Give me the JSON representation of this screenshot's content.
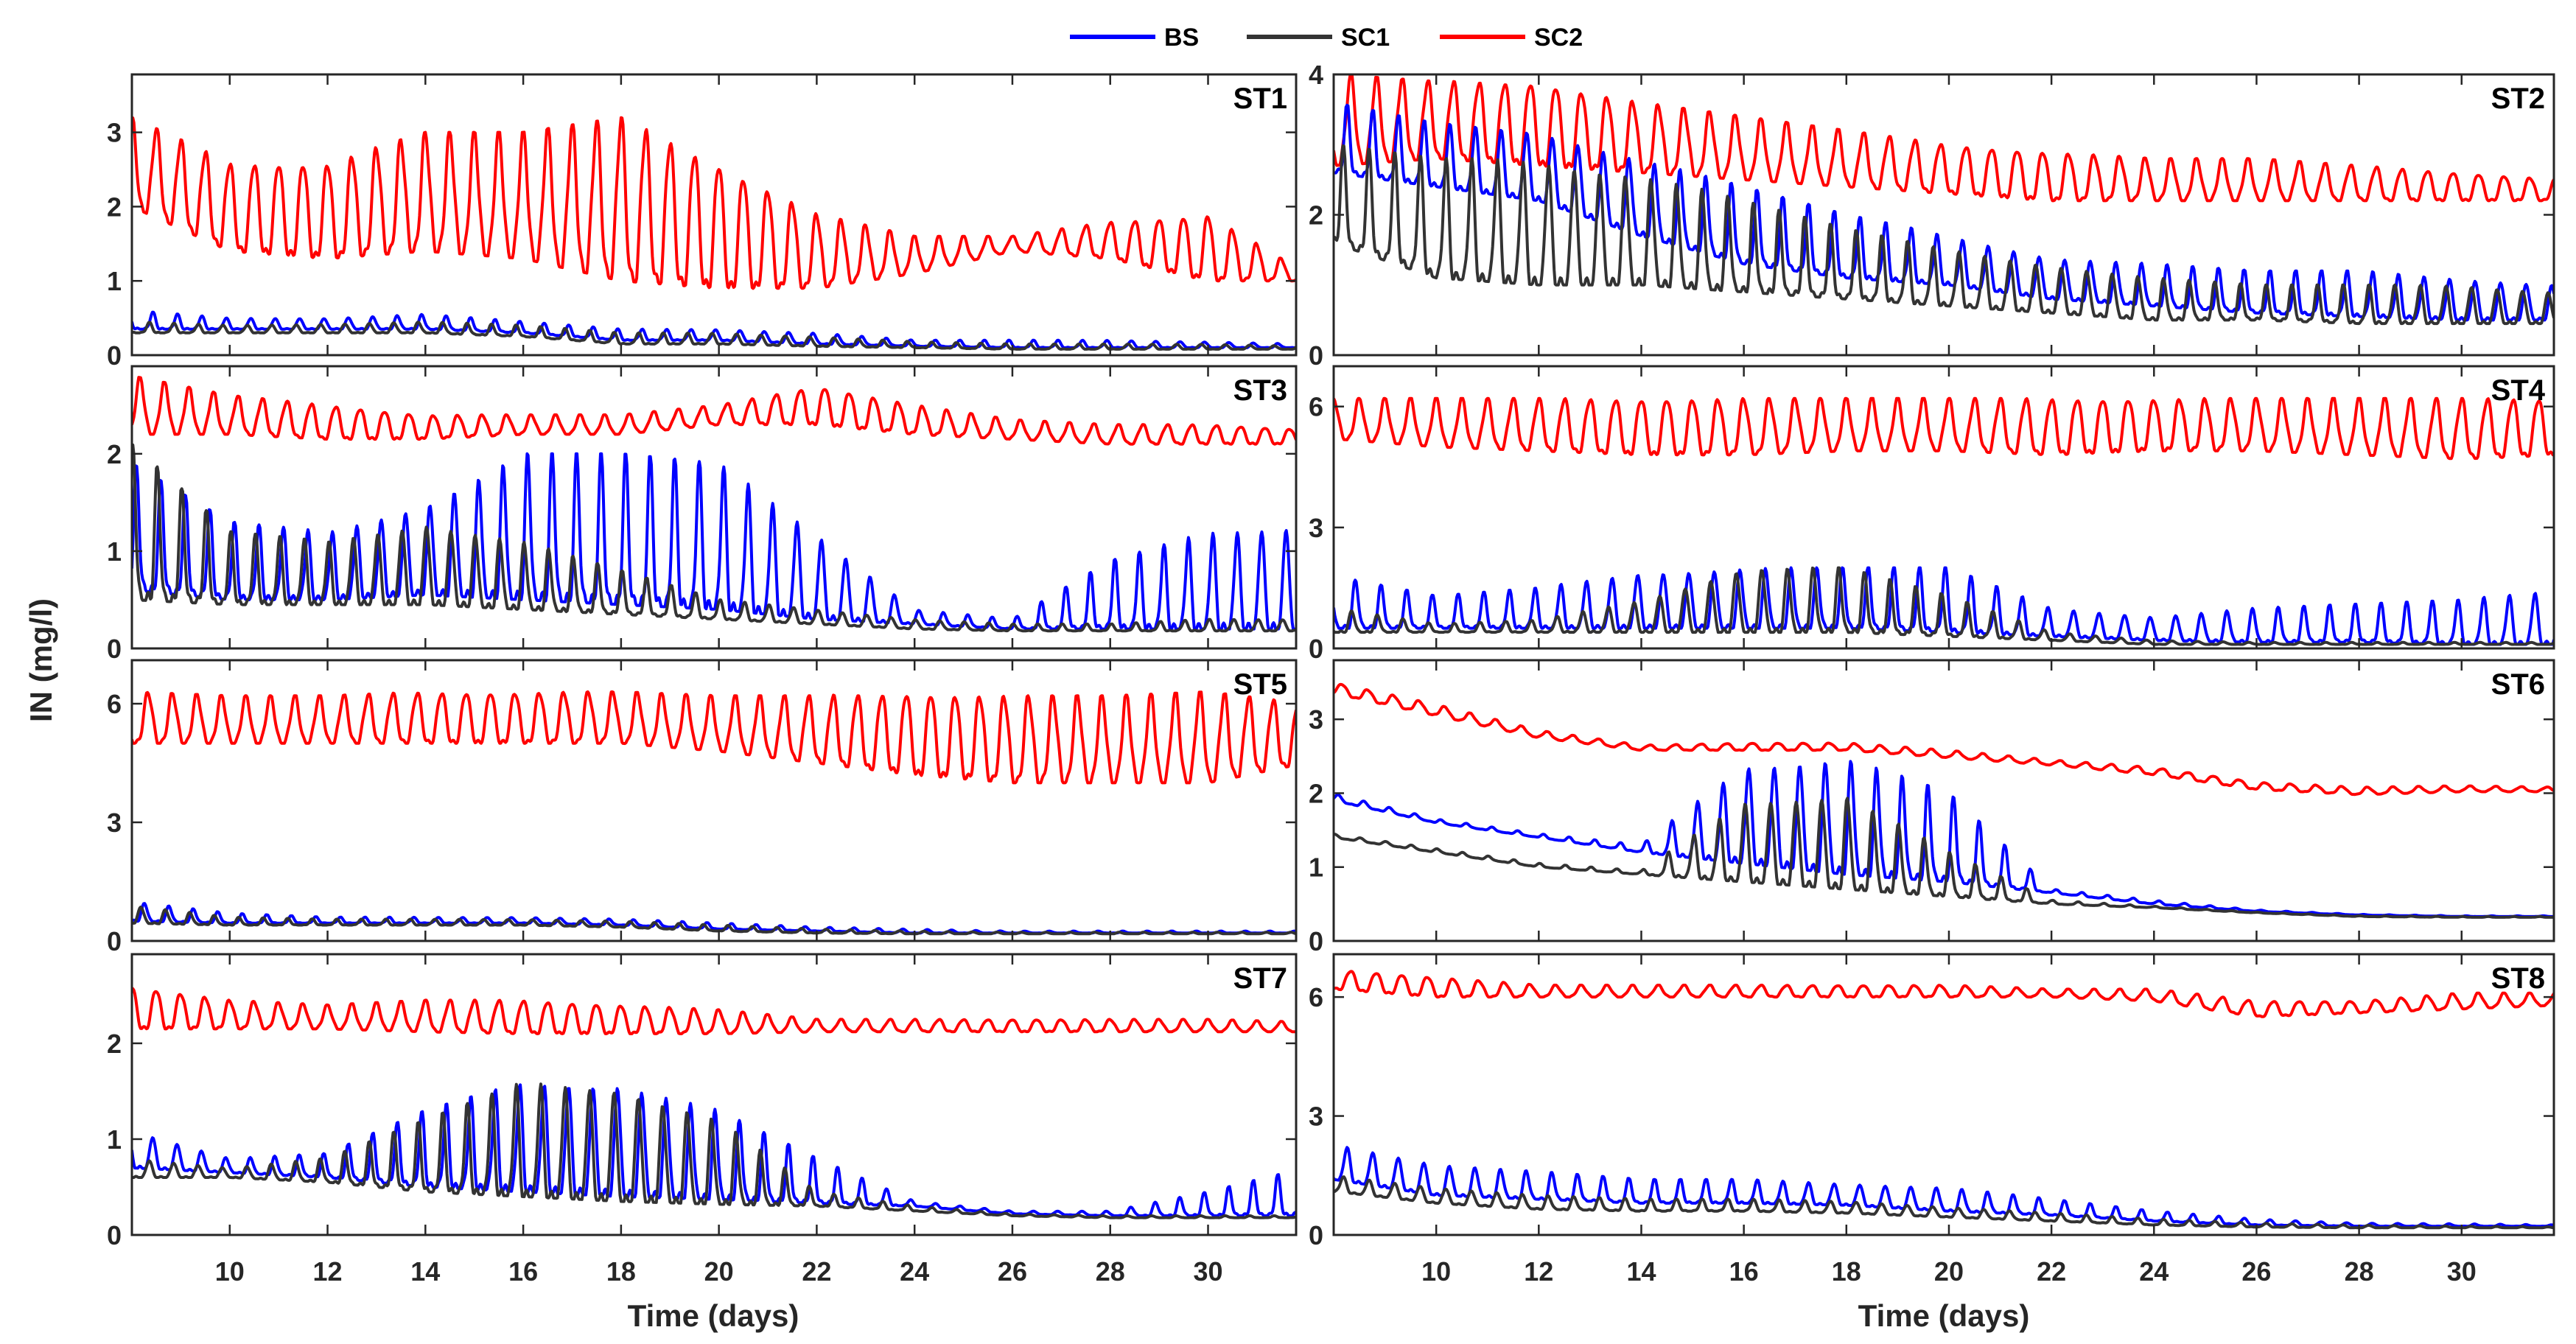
{
  "chart_data": {
    "type": "line",
    "ylabel": "IN (mg/l)",
    "xlabel": "Time (days)",
    "xlim": [
      8,
      31.8
    ],
    "xticks": [
      10,
      12,
      14,
      16,
      18,
      20,
      22,
      24,
      26,
      28,
      30
    ],
    "grid": false,
    "legend": {
      "placement": "top-center",
      "entries": [
        {
          "name": "BS",
          "color": "#0000ff"
        },
        {
          "name": "SC1",
          "color": "#333333"
        },
        {
          "name": "SC2",
          "color": "#ff0000"
        }
      ]
    },
    "envelope_days": [
      8,
      10,
      12,
      14,
      16,
      18,
      20,
      22,
      24,
      26,
      28,
      30,
      32
    ],
    "note_period_days": 0.5,
    "panels": [
      {
        "title": "ST1",
        "ylim": [
          0,
          3.78
        ],
        "yticks": [
          0,
          1,
          2,
          3
        ],
        "series": {
          "SC2": {
            "lo": [
              2.0,
              1.4,
              1.3,
              1.4,
              1.3,
              1.0,
              0.9,
              0.9,
              1.1,
              1.4,
              1.3,
              1.0,
              1.0
            ],
            "hi": [
              3.2,
              2.6,
              2.6,
              3.0,
              3.0,
              3.2,
              2.6,
              1.9,
              1.6,
              1.6,
              1.8,
              1.9,
              1.1
            ]
          },
          "BS": {
            "lo": [
              0.35,
              0.35,
              0.35,
              0.35,
              0.3,
              0.2,
              0.2,
              0.15,
              0.12,
              0.1,
              0.1,
              0.1,
              0.1
            ],
            "hi": [
              0.6,
              0.5,
              0.5,
              0.55,
              0.45,
              0.35,
              0.35,
              0.3,
              0.2,
              0.2,
              0.2,
              0.18,
              0.15
            ]
          },
          "SC1": {
            "lo": [
              0.3,
              0.3,
              0.3,
              0.3,
              0.25,
              0.15,
              0.15,
              0.12,
              0.1,
              0.08,
              0.08,
              0.08,
              0.08
            ],
            "hi": [
              0.45,
              0.4,
              0.42,
              0.45,
              0.4,
              0.3,
              0.3,
              0.25,
              0.18,
              0.15,
              0.15,
              0.15,
              0.12
            ]
          }
        }
      },
      {
        "title": "ST2",
        "ylim": [
          0,
          4
        ],
        "yticks": [
          0,
          2,
          4
        ],
        "series": {
          "SC2": {
            "lo": [
              2.7,
              2.8,
              2.7,
              2.6,
              2.5,
              2.4,
              2.3,
              2.2,
              2.2,
              2.2,
              2.2,
              2.2,
              2.2
            ],
            "hi": [
              4.0,
              3.9,
              3.9,
              3.6,
              3.4,
              3.2,
              3.0,
              2.9,
              2.8,
              2.8,
              2.7,
              2.6,
              2.5
            ]
          },
          "BS": {
            "lo": [
              2.6,
              2.4,
              2.2,
              1.7,
              1.3,
              1.1,
              1.0,
              0.8,
              0.7,
              0.6,
              0.55,
              0.5,
              0.5
            ],
            "hi": [
              3.6,
              3.3,
              3.2,
              2.8,
              2.4,
              2.0,
              1.7,
              1.4,
              1.3,
              1.2,
              1.2,
              1.1,
              1.0
            ]
          },
          "SC1": {
            "lo": [
              1.6,
              1.1,
              1.0,
              1.0,
              0.9,
              0.8,
              0.7,
              0.6,
              0.5,
              0.5,
              0.45,
              0.45,
              0.45
            ],
            "hi": [
              3.0,
              2.8,
              2.8,
              2.6,
              2.2,
              1.8,
              1.5,
              1.3,
              1.1,
              1.0,
              1.0,
              1.0,
              0.9
            ]
          }
        }
      },
      {
        "title": "ST3",
        "ylim": [
          0,
          2.9
        ],
        "yticks": [
          0,
          1,
          2
        ],
        "series": {
          "SC2": {
            "lo": [
              2.2,
              2.2,
              2.15,
              2.15,
              2.2,
              2.2,
              2.3,
              2.3,
              2.2,
              2.15,
              2.1,
              2.1,
              2.1
            ],
            "hi": [
              2.8,
              2.6,
              2.5,
              2.4,
              2.4,
              2.4,
              2.5,
              2.7,
              2.5,
              2.35,
              2.3,
              2.3,
              2.25
            ]
          },
          "BS": {
            "lo": [
              0.6,
              0.5,
              0.5,
              0.55,
              0.5,
              0.45,
              0.4,
              0.3,
              0.25,
              0.2,
              0.2,
              0.2,
              0.2
            ],
            "hi": [
              1.9,
              1.3,
              1.2,
              1.5,
              2.0,
              2.0,
              1.9,
              1.2,
              0.4,
              0.3,
              0.9,
              1.2,
              1.3
            ]
          },
          "SC1": {
            "lo": [
              0.5,
              0.45,
              0.45,
              0.45,
              0.4,
              0.35,
              0.3,
              0.25,
              0.2,
              0.18,
              0.18,
              0.18,
              0.18
            ],
            "hi": [
              2.1,
              1.2,
              1.1,
              1.3,
              1.1,
              0.8,
              0.5,
              0.4,
              0.3,
              0.25,
              0.25,
              0.3,
              0.3
            ]
          }
        }
      },
      {
        "title": "ST4",
        "ylim": [
          0,
          7.0
        ],
        "yticks": [
          0,
          3,
          6
        ],
        "series": {
          "SC2": {
            "lo": [
              5.2,
              5.0,
              4.9,
              4.8,
              4.8,
              4.9,
              4.9,
              4.8,
              4.9,
              4.9,
              4.8,
              4.7,
              4.8
            ],
            "hi": [
              6.2,
              6.2,
              6.2,
              6.2,
              6.2,
              6.2,
              6.2,
              6.2,
              6.2,
              6.2,
              6.2,
              6.2,
              6.2
            ]
          },
          "BS": {
            "lo": [
              0.5,
              0.5,
              0.5,
              0.5,
              0.5,
              0.5,
              0.4,
              0.3,
              0.2,
              0.15,
              0.15,
              0.1,
              0.1
            ],
            "hi": [
              1.8,
              1.3,
              1.5,
              1.9,
              2.0,
              2.0,
              2.0,
              1.0,
              0.8,
              1.0,
              1.1,
              1.2,
              1.5
            ]
          },
          "SC1": {
            "lo": [
              0.4,
              0.4,
              0.4,
              0.4,
              0.4,
              0.4,
              0.3,
              0.2,
              0.1,
              0.1,
              0.1,
              0.1,
              0.1
            ],
            "hi": [
              1.0,
              0.6,
              0.7,
              1.2,
              2.0,
              2.0,
              1.3,
              0.4,
              0.2,
              0.15,
              0.15,
              0.15,
              0.15
            ]
          }
        }
      },
      {
        "title": "ST5",
        "ylim": [
          0,
          7.1
        ],
        "yticks": [
          0,
          3,
          6
        ],
        "series": {
          "SC2": {
            "lo": [
              5.0,
              5.0,
              5.0,
              5.0,
              5.0,
              5.0,
              4.8,
              4.5,
              4.2,
              4.0,
              4.0,
              4.0,
              4.5
            ],
            "hi": [
              6.3,
              6.2,
              6.2,
              6.3,
              6.3,
              6.3,
              6.2,
              6.2,
              6.3,
              6.2,
              6.2,
              6.3,
              6.0
            ]
          },
          "BS": {
            "lo": [
              0.5,
              0.45,
              0.45,
              0.45,
              0.45,
              0.4,
              0.3,
              0.25,
              0.2,
              0.2,
              0.2,
              0.2,
              0.2
            ],
            "hi": [
              1.0,
              0.7,
              0.6,
              0.6,
              0.6,
              0.55,
              0.45,
              0.35,
              0.3,
              0.25,
              0.25,
              0.25,
              0.25
            ]
          },
          "SC1": {
            "lo": [
              0.45,
              0.4,
              0.4,
              0.4,
              0.4,
              0.35,
              0.25,
              0.2,
              0.18,
              0.18,
              0.18,
              0.18,
              0.18
            ],
            "hi": [
              0.9,
              0.6,
              0.55,
              0.55,
              0.55,
              0.5,
              0.4,
              0.3,
              0.25,
              0.22,
              0.22,
              0.22,
              0.22
            ]
          }
        }
      },
      {
        "title": "ST6",
        "ylim": [
          0,
          3.8
        ],
        "yticks": [
          0,
          1,
          2,
          3
        ],
        "series": {
          "SC2": {
            "lo": [
              3.35,
              3.05,
              2.75,
              2.58,
              2.58,
              2.58,
              2.48,
              2.38,
              2.25,
              2.05,
              1.98,
              2.02,
              2.02
            ],
            "hi": [
              3.5,
              3.2,
              2.85,
              2.65,
              2.68,
              2.68,
              2.58,
              2.45,
              2.35,
              2.15,
              2.08,
              2.1,
              2.08
            ]
          },
          "BS": {
            "lo": [
              1.9,
              1.6,
              1.4,
              1.2,
              1.05,
              0.9,
              0.8,
              0.65,
              0.5,
              0.4,
              0.35,
              0.33,
              0.33
            ],
            "hi": [
              2.0,
              1.65,
              1.45,
              1.3,
              2.4,
              2.5,
              2.0,
              0.7,
              0.55,
              0.42,
              0.36,
              0.34,
              0.34
            ]
          },
          "SC1": {
            "lo": [
              1.4,
              1.2,
              1.0,
              0.9,
              0.8,
              0.7,
              0.6,
              0.5,
              0.45,
              0.38,
              0.33,
              0.32,
              0.32
            ],
            "hi": [
              1.45,
              1.25,
              1.05,
              0.95,
              1.9,
              2.0,
              1.2,
              0.55,
              0.47,
              0.39,
              0.34,
              0.33,
              0.33
            ]
          }
        }
      },
      {
        "title": "ST7",
        "ylim": [
          0,
          2.93
        ],
        "yticks": [
          0,
          1,
          2
        ],
        "series": {
          "SC2": {
            "lo": [
              2.15,
              2.15,
              2.15,
              2.12,
              2.1,
              2.1,
              2.1,
              2.12,
              2.12,
              2.12,
              2.12,
              2.12,
              2.12
            ],
            "hi": [
              2.6,
              2.45,
              2.4,
              2.45,
              2.45,
              2.4,
              2.35,
              2.25,
              2.25,
              2.25,
              2.25,
              2.25,
              2.22
            ]
          },
          "BS": {
            "lo": [
              0.7,
              0.65,
              0.6,
              0.5,
              0.45,
              0.4,
              0.37,
              0.33,
              0.3,
              0.22,
              0.2,
              0.2,
              0.2
            ],
            "hi": [
              1.1,
              0.8,
              0.85,
              1.3,
              1.6,
              1.6,
              1.3,
              0.8,
              0.35,
              0.25,
              0.25,
              0.45,
              0.7
            ]
          },
          "SC1": {
            "lo": [
              0.6,
              0.6,
              0.55,
              0.45,
              0.4,
              0.35,
              0.32,
              0.3,
              0.25,
              0.2,
              0.18,
              0.18,
              0.18
            ],
            "hi": [
              0.8,
              0.7,
              0.8,
              1.2,
              1.6,
              1.55,
              1.2,
              0.45,
              0.3,
              0.22,
              0.2,
              0.2,
              0.2
            ]
          }
        }
      },
      {
        "title": "ST8",
        "ylim": [
          0,
          7.08
        ],
        "yticks": [
          0,
          3,
          6
        ],
        "series": {
          "SC2": {
            "lo": [
              6.2,
              6.0,
              6.0,
              6.0,
              6.0,
              6.0,
              6.0,
              6.0,
              5.9,
              5.5,
              5.6,
              5.7,
              5.8
            ],
            "hi": [
              6.7,
              6.5,
              6.3,
              6.3,
              6.3,
              6.3,
              6.3,
              6.2,
              6.2,
              5.9,
              5.9,
              6.1,
              6.1
            ]
          },
          "BS": {
            "lo": [
              1.4,
              1.0,
              0.9,
              0.8,
              0.8,
              0.75,
              0.6,
              0.5,
              0.35,
              0.25,
              0.22,
              0.22,
              0.22
            ],
            "hi": [
              2.3,
              1.8,
              1.6,
              1.4,
              1.4,
              1.3,
              1.2,
              0.9,
              0.6,
              0.4,
              0.3,
              0.28,
              0.25
            ]
          },
          "SC1": {
            "lo": [
              1.1,
              0.8,
              0.65,
              0.6,
              0.6,
              0.55,
              0.45,
              0.35,
              0.25,
              0.2,
              0.18,
              0.18,
              0.18
            ],
            "hi": [
              1.5,
              1.2,
              1.0,
              0.9,
              0.9,
              0.85,
              0.7,
              0.55,
              0.4,
              0.3,
              0.25,
              0.22,
              0.2
            ]
          }
        }
      }
    ]
  }
}
